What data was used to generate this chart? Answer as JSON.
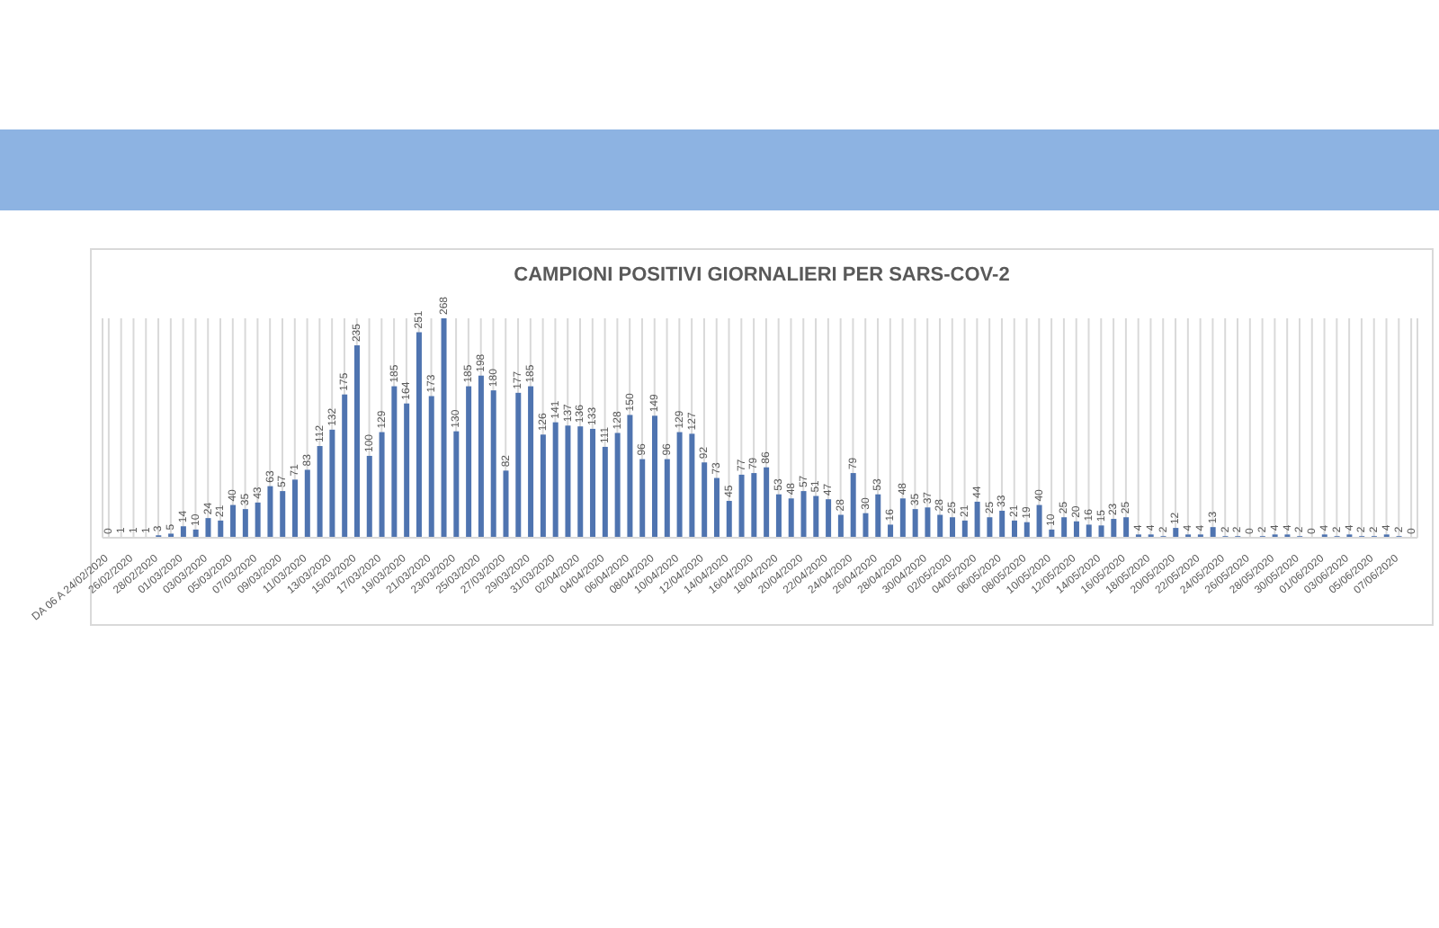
{
  "chart_data": {
    "type": "bar",
    "title": "CAMPIONI POSITIVI GIORNALIERI PER SARS-COV-2",
    "categories": [
      "DA 06 A 24/02/2020",
      null,
      "26/02/2020",
      null,
      "28/02/2020",
      null,
      "01/03/2020",
      null,
      "03/03/2020",
      null,
      "05/03/2020",
      null,
      "07/03/2020",
      null,
      "09/03/2020",
      null,
      "11/03/2020",
      null,
      "13/03/2020",
      null,
      "15/03/2020",
      null,
      "17/03/2020",
      null,
      "19/03/2020",
      null,
      "21/03/2020",
      null,
      "23/03/2020",
      null,
      "25/03/2020",
      null,
      "27/03/2020",
      null,
      "29/03/2020",
      null,
      "31/03/2020",
      null,
      "02/04/2020",
      null,
      "04/04/2020",
      null,
      "06/04/2020",
      null,
      "08/04/2020",
      null,
      "10/04/2020",
      null,
      "12/04/2020",
      null,
      "14/04/2020",
      null,
      "16/04/2020",
      null,
      "18/04/2020",
      null,
      "20/04/2020",
      null,
      "22/04/2020",
      null,
      "24/04/2020",
      null,
      "26/04/2020",
      null,
      "28/04/2020",
      null,
      "30/04/2020",
      null,
      "02/05/2020",
      null,
      "04/05/2020",
      null,
      "06/05/2020",
      null,
      "08/05/2020",
      null,
      "10/05/2020",
      null,
      "12/05/2020",
      null,
      "14/05/2020",
      null,
      "16/05/2020",
      null,
      "18/05/2020",
      null,
      "20/05/2020",
      null,
      "22/05/2020",
      null,
      "24/05/2020",
      null,
      "26/05/2020",
      null,
      "28/05/2020",
      null,
      "30/05/2020",
      null,
      "01/06/2020",
      null,
      "03/06/2020",
      null,
      "05/06/2020",
      null,
      "07/06/2020",
      null
    ],
    "values": [
      0,
      1,
      1,
      1,
      3,
      5,
      14,
      10,
      24,
      21,
      40,
      35,
      43,
      63,
      57,
      71,
      83,
      112,
      132,
      175,
      235,
      100,
      129,
      185,
      164,
      251,
      173,
      268,
      130,
      185,
      198,
      180,
      82,
      177,
      185,
      126,
      141,
      137,
      136,
      133,
      111,
      128,
      150,
      96,
      149,
      96,
      129,
      127,
      92,
      73,
      45,
      77,
      79,
      86,
      53,
      48,
      57,
      51,
      47,
      28,
      79,
      30,
      53,
      16,
      48,
      35,
      37,
      28,
      25,
      21,
      44,
      25,
      33,
      21,
      19,
      40,
      10,
      25,
      20,
      16,
      15,
      23,
      25,
      4,
      4,
      2,
      12,
      4,
      4,
      13,
      2,
      2,
      0,
      2,
      4,
      4,
      2,
      0,
      4,
      2,
      4,
      2,
      2,
      4,
      2,
      0
    ],
    "color": "#4f74b0",
    "data_labels": true,
    "grid": "x"
  }
}
